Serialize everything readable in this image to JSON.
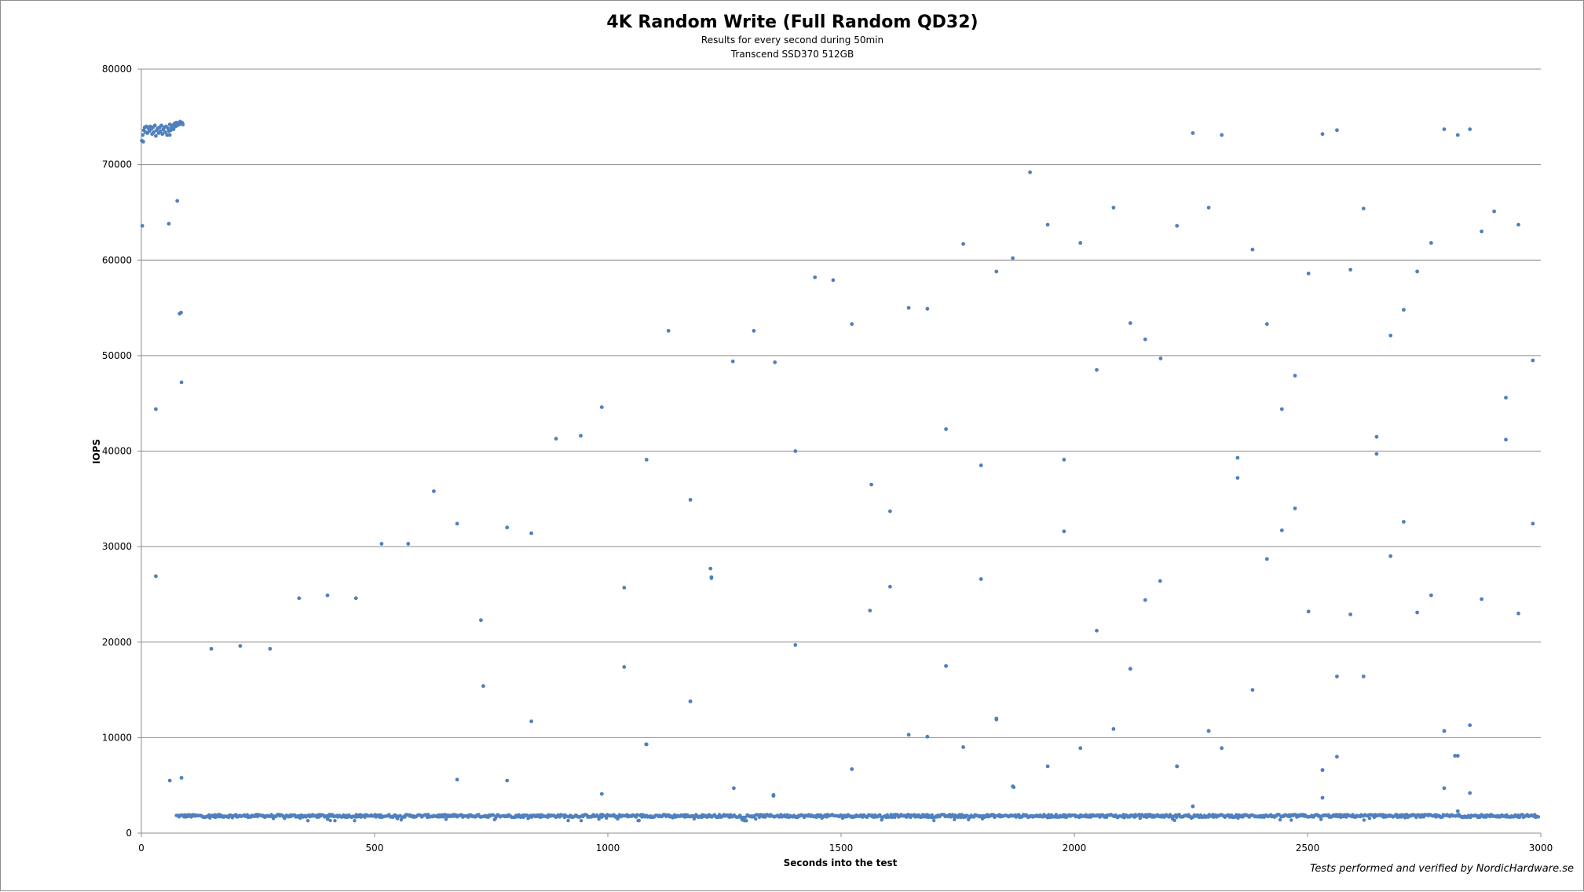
{
  "chart_data": {
    "type": "scatter",
    "title": "4K Random Write (Full Random QD32)",
    "subtitle_lines": [
      "Results for every second during 50min",
      "Transcend SSD370 512GB"
    ],
    "xlabel": "Seconds into the test",
    "ylabel": "IOPS",
    "xlim": [
      0,
      3000
    ],
    "ylim": [
      0,
      80000
    ],
    "x_ticks": [
      "0",
      "500",
      "1000",
      "1500",
      "2000",
      "2500",
      "3000"
    ],
    "y_ticks": [
      "0",
      "10000",
      "20000",
      "30000",
      "40000",
      "50000",
      "60000",
      "70000",
      "80000"
    ],
    "grid": "horizontal",
    "legend": "none",
    "series_color": "#4f81bd",
    "credit": "Tests performed and verified by NordicHardware.se",
    "series": [
      {
        "description_of_data": "IOPS per second; first ~90 s near 73000-74500, then mostly ~1500-2000 with scattered outliers",
        "steady_state_range": [
          1300,
          2100
        ],
        "x": [
          1,
          3,
          5,
          7,
          9,
          11,
          13,
          15,
          17,
          19,
          21,
          23,
          25,
          27,
          29,
          31,
          33,
          35,
          37,
          39,
          41,
          43,
          45,
          47,
          49,
          51,
          53,
          55,
          57,
          59,
          61,
          63,
          65,
          67,
          69,
          71,
          73,
          75,
          77,
          79,
          81,
          83,
          85,
          87,
          89,
          2,
          31,
          59,
          77,
          82,
          85,
          31,
          4,
          61,
          86,
          150,
          212,
          276,
          338,
          399,
          460,
          515,
          572,
          627,
          677,
          728,
          784,
          836,
          889,
          942,
          987,
          1035,
          1083,
          1130,
          1177,
          1222,
          1268,
          1313,
          1358,
          1402,
          1444,
          1483,
          1523,
          1565,
          1605,
          1645,
          1685,
          1725,
          1762,
          1800,
          1833,
          1868,
          1905,
          1943,
          1978,
          2013,
          2048,
          2084,
          2120,
          2152,
          2185,
          2220,
          2254,
          2288,
          2316,
          2350,
          2382,
          2413,
          2445,
          2473,
          2502,
          2532,
          2563,
          2592,
          2620,
          2648,
          2678,
          2706,
          2735,
          2765,
          2793,
          2822,
          2848,
          2873,
          2900,
          2925,
          2952,
          2983,
          1035,
          1082,
          1177,
          1220,
          1222,
          1402,
          1562,
          1605,
          1725,
          1800,
          1833,
          1978,
          2048,
          2120,
          2152,
          2184,
          2288,
          2350,
          2413,
          2445,
          2473,
          2502,
          2532,
          2563,
          2592,
          2648,
          2678,
          2706,
          2735,
          2765,
          2793,
          2822,
          2848,
          2925,
          2952,
          2983,
          733,
          836,
          1083,
          1177,
          1355,
          1523,
          1645,
          1685,
          1725,
          1762,
          1833,
          1868,
          1943,
          2013,
          2084,
          2120,
          2220,
          2254,
          2288,
          2316,
          2382,
          2532,
          2563,
          2620,
          2793,
          2822,
          2848,
          2873,
          61,
          86,
          677,
          784,
          987,
          1270,
          1355,
          1870,
          2220,
          2254,
          2532,
          2793,
          2816
        ],
        "y": [
          72500,
          73100,
          73600,
          73900,
          73400,
          74000,
          73300,
          73800,
          73500,
          74000,
          73700,
          73200,
          73900,
          73400,
          74100,
          73000,
          73600,
          73800,
          73300,
          73900,
          73500,
          74100,
          73200,
          73700,
          73900,
          73400,
          74000,
          73100,
          73800,
          73500,
          74200,
          73600,
          73900,
          74100,
          73700,
          74300,
          74000,
          74400,
          74100,
          74300,
          74200,
          74500,
          74300,
          74400,
          74200,
          63600,
          26900,
          63800,
          66200,
          54400,
          54500,
          44400,
          72400,
          73100,
          47200,
          19300,
          19600,
          19300,
          24600,
          24900,
          24600,
          30300,
          30300,
          35800,
          32400,
          22300,
          32000,
          31400,
          41300,
          41600,
          44600,
          25700,
          39100,
          52600,
          34900,
          26800,
          49400,
          52600,
          49300,
          40000,
          58200,
          57900,
          53300,
          36500,
          33700,
          55000,
          54900,
          42300,
          61700,
          38500,
          58800,
          60200,
          69200,
          63700,
          39100,
          61800,
          48500,
          65500,
          53400,
          51700,
          49700,
          63600,
          73300,
          65500,
          73100,
          37200,
          61100,
          53300,
          44400,
          47900,
          58600,
          73200,
          73600,
          59000,
          65400,
          41500,
          52100,
          54800,
          58800,
          61800,
          73700,
          73100,
          73700,
          63000,
          65100,
          41200,
          63700,
          49500,
          17400,
          9300,
          13800,
          27700,
          26700,
          19700,
          23300,
          25800,
          17500,
          26600,
          12000,
          31600,
          21200,
          17200,
          24400,
          26400,
          10700,
          39300,
          28700,
          31700,
          34000,
          23200,
          6600,
          8000,
          22900,
          39700,
          29000,
          32600,
          23100,
          24900,
          10700,
          8100,
          11300,
          45600,
          23000,
          32400,
          15400,
          11700,
          9300,
          13800,
          3900,
          6700,
          10300,
          10100,
          17500,
          9000,
          11900,
          4900,
          7000,
          8900,
          10900,
          17200,
          7000,
          2800,
          10700,
          8900,
          15000,
          3700,
          16400,
          16400,
          4700,
          2300,
          4200,
          24500,
          5500,
          5800,
          5600,
          5500,
          4100,
          4700,
          4000,
          4800,
          7000,
          2800,
          6600,
          10700,
          8100
        ]
      }
    ]
  }
}
